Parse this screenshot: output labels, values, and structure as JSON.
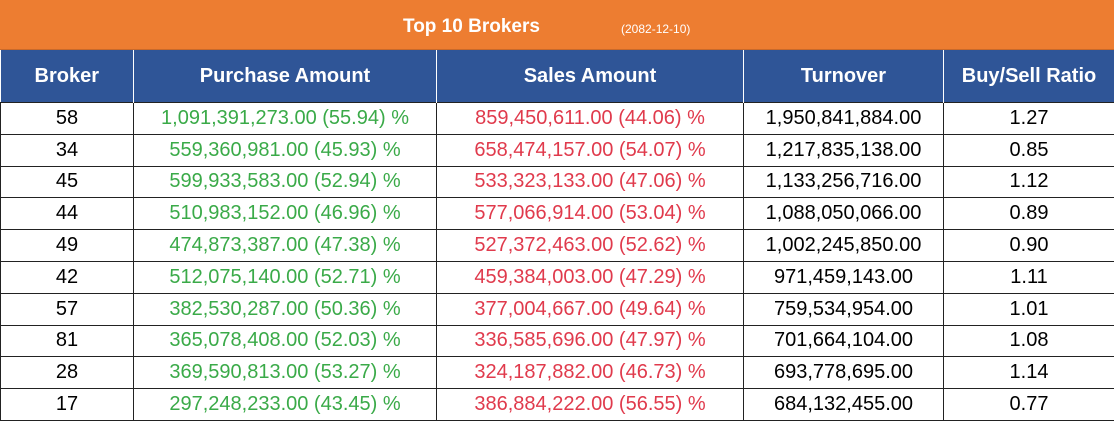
{
  "header": {
    "title": "Top 10 Brokers",
    "date": "(2082-12-10)"
  },
  "table": {
    "columns": [
      "Broker",
      "Purchase Amount",
      "Sales Amount",
      "Turnover",
      "Buy/Sell Ratio"
    ],
    "rows": [
      [
        "58",
        "1,091,391,273.00 (55.94) %",
        "859,450,611.00 (44.06) %",
        "1,950,841,884.00",
        "1.27"
      ],
      [
        "34",
        "559,360,981.00 (45.93) %",
        "658,474,157.00 (54.07) %",
        "1,217,835,138.00",
        "0.85"
      ],
      [
        "45",
        "599,933,583.00 (52.94) %",
        "533,323,133.00 (47.06) %",
        "1,133,256,716.00",
        "1.12"
      ],
      [
        "44",
        "510,983,152.00 (46.96) %",
        "577,066,914.00 (53.04) %",
        "1,088,050,066.00",
        "0.89"
      ],
      [
        "49",
        "474,873,387.00 (47.38) %",
        "527,372,463.00 (52.62) %",
        "1,002,245,850.00",
        "0.90"
      ],
      [
        "42",
        "512,075,140.00 (52.71) %",
        "459,384,003.00 (47.29) %",
        "971,459,143.00",
        "1.11"
      ],
      [
        "57",
        "382,530,287.00 (50.36) %",
        "377,004,667.00 (49.64) %",
        "759,534,954.00",
        "1.01"
      ],
      [
        "81",
        "365,078,408.00 (52.03) %",
        "336,585,696.00 (47.97) %",
        "701,664,104.00",
        "1.08"
      ],
      [
        "28",
        "369,590,813.00 (53.27) %",
        "324,187,882.00 (46.73) %",
        "693,778,695.00",
        "1.14"
      ],
      [
        "17",
        "297,248,233.00 (43.45) %",
        "386,884,222.00 (56.55) %",
        "684,132,455.00",
        "0.77"
      ]
    ]
  }
}
